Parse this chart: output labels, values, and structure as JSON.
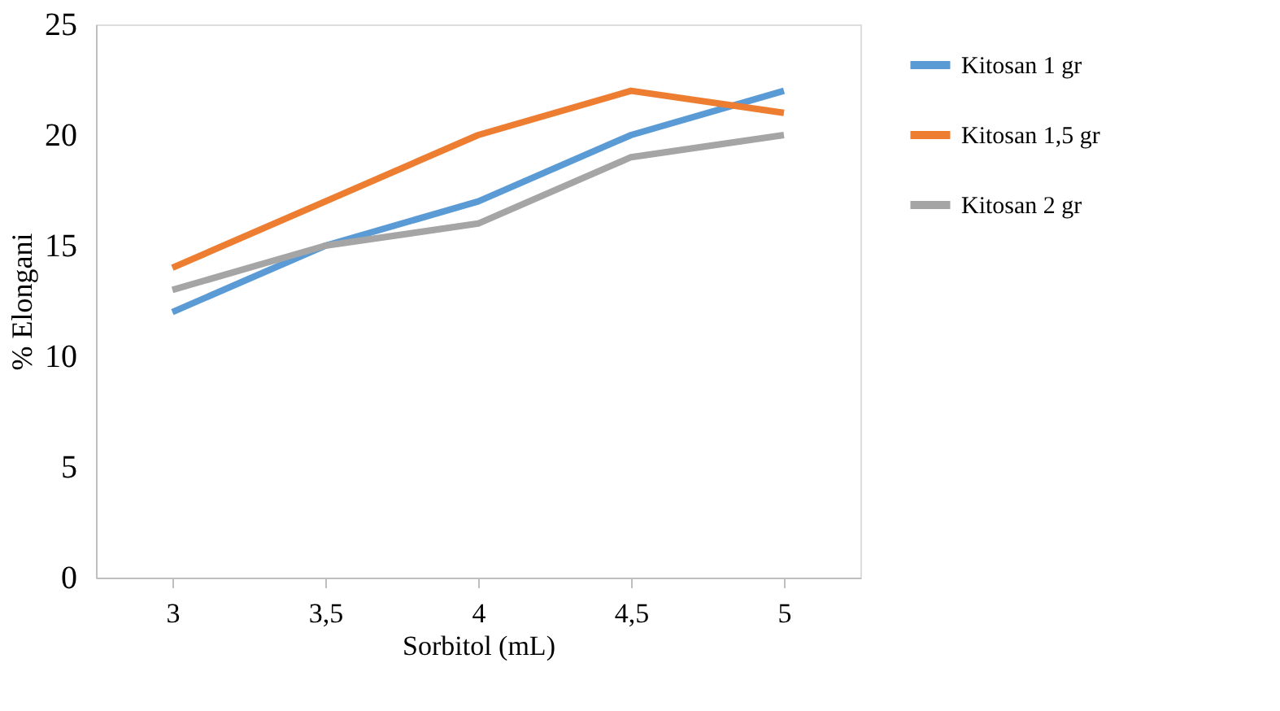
{
  "chart_data": {
    "type": "line",
    "xlabel": "Sorbitol (mL)",
    "ylabel": "% Elongani",
    "categories": [
      "3",
      "3,5",
      "4",
      "4,5",
      "5"
    ],
    "ylim": [
      0,
      25
    ],
    "yticks": [
      0,
      5,
      10,
      15,
      20,
      25
    ],
    "grid": false,
    "legend": "right",
    "marker": "none",
    "line_style": "solid",
    "series": [
      {
        "name": "Kitosan 1 gr",
        "color": "#5b9bd5",
        "values": [
          12,
          15,
          17,
          20,
          22
        ]
      },
      {
        "name": "Kitosan 1,5 gr",
        "color": "#ed7d31",
        "values": [
          14,
          17,
          20,
          22,
          21
        ]
      },
      {
        "name": "Kitosan 2 gr",
        "color": "#a5a5a5",
        "values": [
          13,
          15,
          16,
          19,
          20
        ]
      }
    ]
  }
}
